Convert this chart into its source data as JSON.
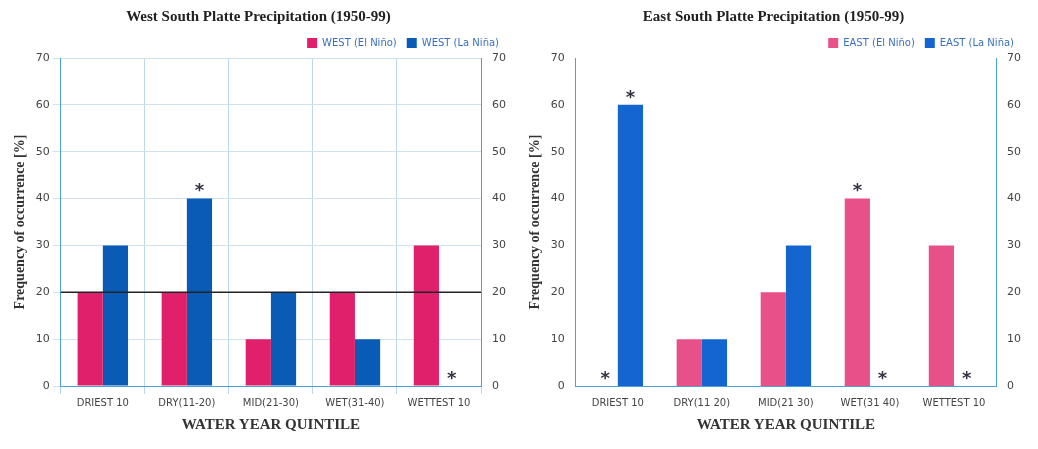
{
  "chart_data": [
    {
      "type": "bar",
      "title": "West South Platte Precipitation (1950-99)",
      "xlabel": "WATER YEAR QUINTILE",
      "ylabel": "Frequency of occurrence [%]",
      "categories": [
        "DRIEST 10",
        "DRY(11-20)",
        "MID(21-30)",
        "WET(31-40)",
        "WETTEST 10"
      ],
      "series": [
        {
          "name": "WEST (El Niño)",
          "color": "#e0206a",
          "values": [
            20,
            20,
            10,
            20,
            30
          ]
        },
        {
          "name": "WEST (La Niña)",
          "color": "#0a5bb5",
          "values": [
            30,
            40,
            20,
            10,
            0
          ]
        }
      ],
      "ylim": [
        0,
        70
      ],
      "yticks": [
        0,
        10,
        20,
        30,
        40,
        50,
        60,
        70
      ],
      "y2lim": [
        0,
        70
      ],
      "y2ticks": [
        0,
        10,
        20,
        30,
        40,
        50,
        60,
        70
      ],
      "ref_lines": [
        {
          "axis": "y",
          "value": 20,
          "color": "#222222"
        }
      ],
      "annotations": [
        {
          "text": "*",
          "x": "DRY(11-20)",
          "y": 40
        },
        {
          "text": "*",
          "x": "WETTEST 10",
          "y": 0
        }
      ],
      "grid": true,
      "legend": "top right"
    },
    {
      "type": "bar",
      "title": "East South Platte Precipitation (1950-99)",
      "xlabel": "WATER YEAR QUINTILE",
      "ylabel": "Frequency of occurrence [%]",
      "categories": [
        "DRIEST 10",
        "DRY(11 20)",
        "MID(21 30)",
        "WET(31 40)",
        "WETTEST 10"
      ],
      "series": [
        {
          "name": "EAST (El Niño)",
          "color": "#e8508a",
          "values": [
            0,
            10,
            20,
            40,
            30
          ]
        },
        {
          "name": "EAST (La Niña)",
          "color": "#1565d0",
          "values": [
            60,
            10,
            30,
            0,
            0
          ]
        }
      ],
      "ylim": [
        0,
        70
      ],
      "yticks": [
        0,
        10,
        20,
        30,
        40,
        50,
        60,
        70
      ],
      "y2lim": [
        0,
        70
      ],
      "y2ticks": [
        0,
        10,
        20,
        30,
        40,
        50,
        60,
        70
      ],
      "annotations": [
        {
          "text": "*",
          "x": "DRIEST 10",
          "y": 0
        },
        {
          "text": "*",
          "x": "DRIEST 10",
          "y": 60
        },
        {
          "text": "*",
          "x": "WET(31 40)",
          "y": 40
        },
        {
          "text": "*",
          "x": "WET(31 40)",
          "y": 0
        },
        {
          "text": "*",
          "x": "WETTEST 10",
          "y": 0
        }
      ],
      "grid": false,
      "legend": "top right"
    }
  ]
}
